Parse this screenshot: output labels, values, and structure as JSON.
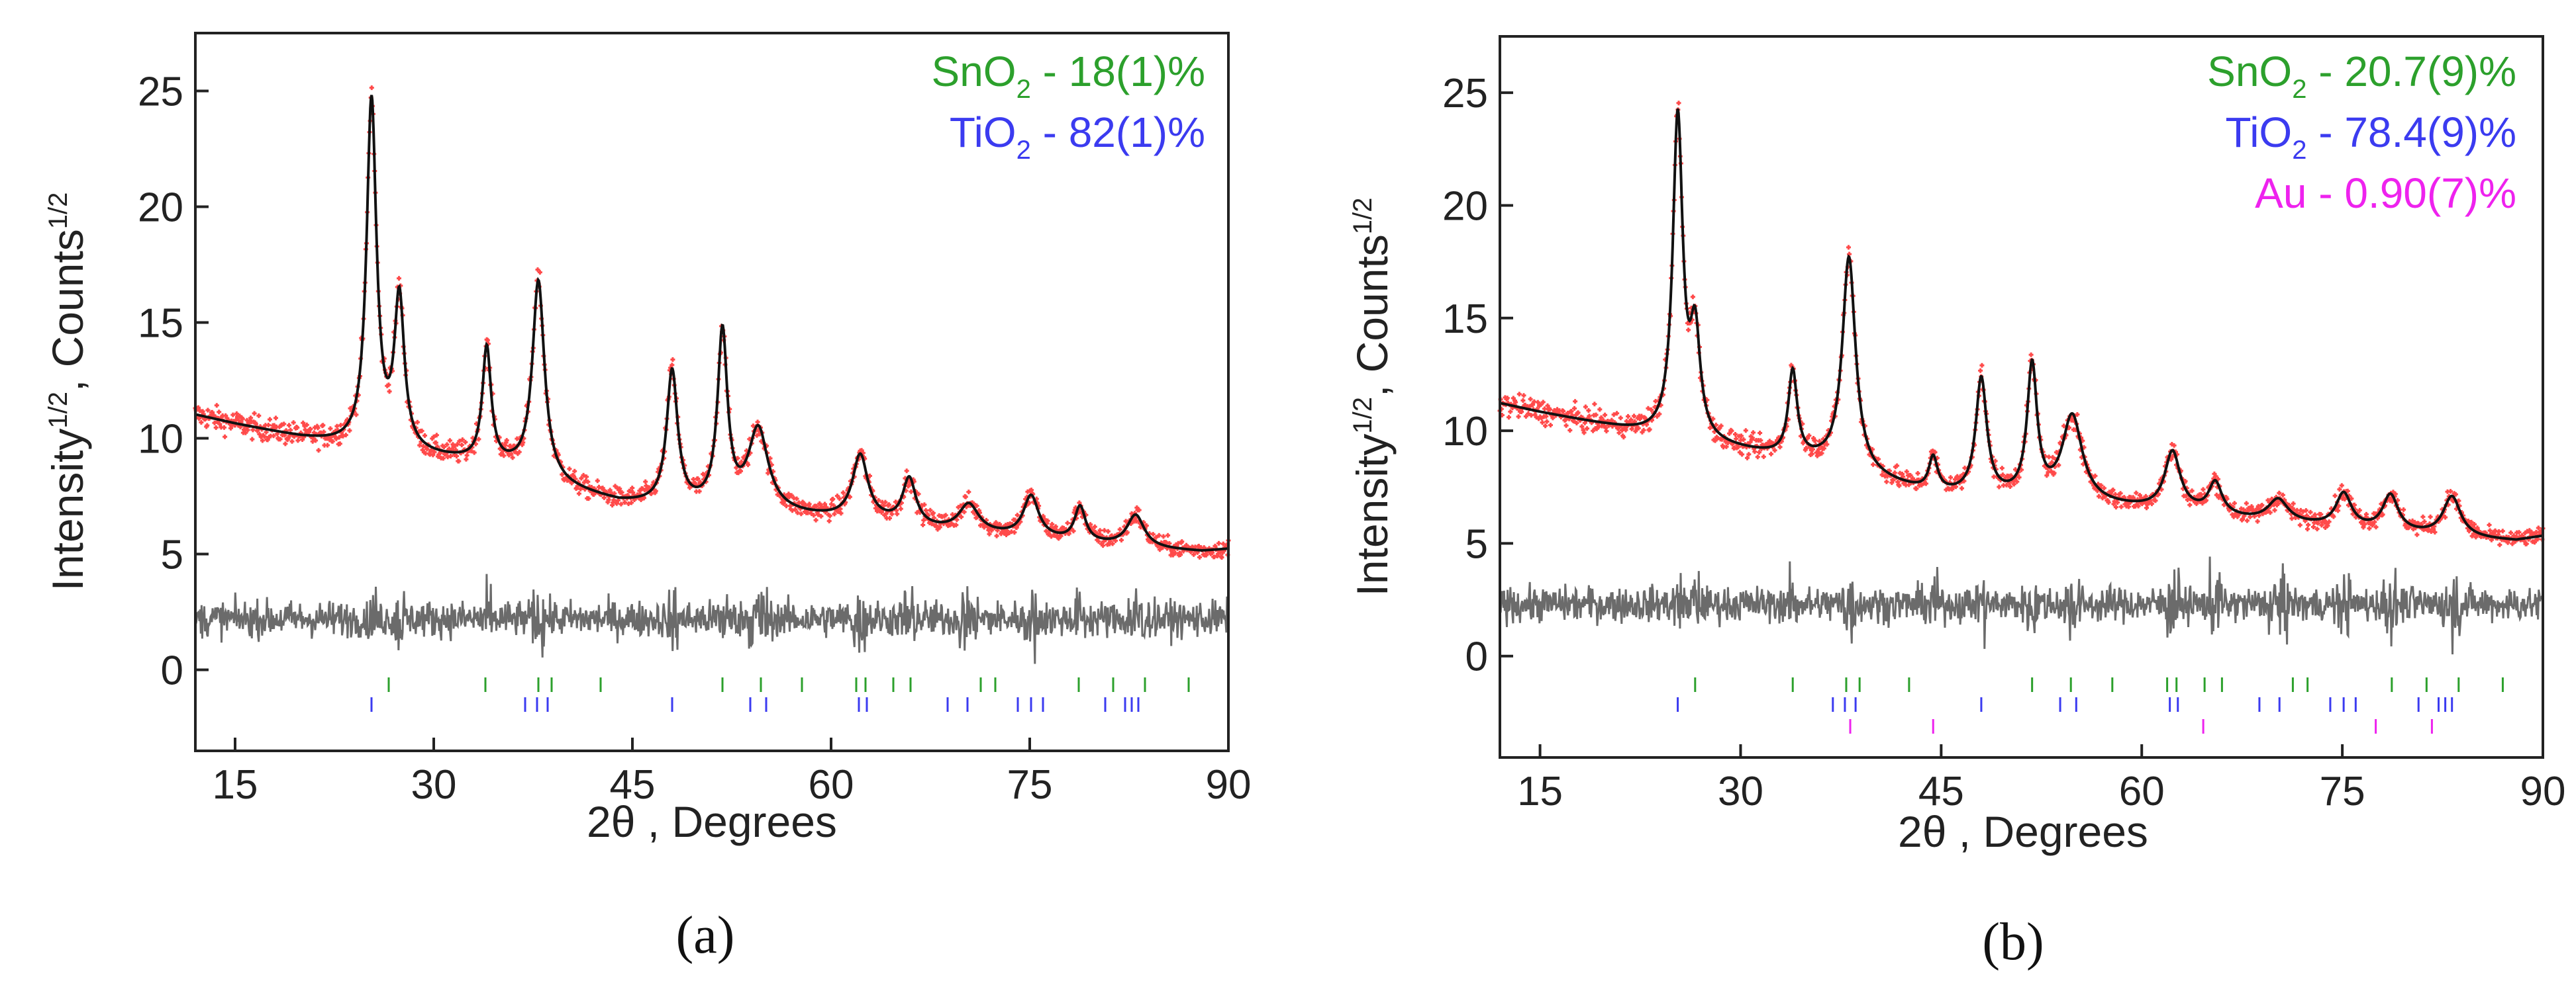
{
  "chart_data": [
    {
      "panel": "a",
      "type": "line",
      "caption": "(a)",
      "xlabel": "2θ , Degrees",
      "ylabel_main": "Intensity",
      "ylabel_mid": ", Counts",
      "ylabel_sup": "1/2",
      "xlim": [
        12,
        90
      ],
      "ylim": [
        -3.5,
        27.5
      ],
      "xticks": [
        15,
        30,
        45,
        60,
        75,
        90
      ],
      "yticks": [
        0,
        5,
        10,
        15,
        20,
        25
      ],
      "legend_position": "top-right",
      "legend": [
        {
          "label": "SnO",
          "sub": "2",
          "dash": " - ",
          "value": "18(1)%",
          "color": "#2ca02c"
        },
        {
          "label": "TiO",
          "sub": "2",
          "dash": " - ",
          "value": "82(1)%",
          "color": "#3b3bf0"
        }
      ],
      "series": [
        {
          "name": "observed",
          "color": "#ff2a2a"
        },
        {
          "name": "calculated",
          "color": "#111111"
        },
        {
          "name": "difference",
          "color": "#6b6b6b"
        }
      ],
      "background_x": [
        12,
        15,
        20,
        24,
        28,
        32,
        36,
        40,
        44,
        48,
        52,
        56,
        60,
        64,
        68,
        72,
        76,
        80,
        84,
        88,
        90
      ],
      "background_y": [
        11.0,
        10.6,
        10.0,
        9.6,
        9.3,
        9.0,
        8.6,
        7.8,
        7.2,
        7.0,
        6.9,
        6.7,
        6.5,
        6.3,
        6.0,
        5.8,
        5.6,
        5.4,
        5.2,
        5.1,
        5.2
      ],
      "peaks": [
        {
          "x": 25.3,
          "h": 15.0,
          "w": 0.45
        },
        {
          "x": 27.4,
          "h": 6.5,
          "w": 0.45
        },
        {
          "x": 34.0,
          "h": 5.0,
          "w": 0.4
        },
        {
          "x": 37.9,
          "h": 8.5,
          "w": 0.55
        },
        {
          "x": 48.0,
          "h": 5.8,
          "w": 0.5
        },
        {
          "x": 51.8,
          "h": 7.5,
          "w": 0.45
        },
        {
          "x": 54.5,
          "h": 3.5,
          "w": 0.9
        },
        {
          "x": 62.2,
          "h": 2.8,
          "w": 0.7
        },
        {
          "x": 65.9,
          "h": 2.0,
          "w": 0.6
        },
        {
          "x": 70.4,
          "h": 1.2,
          "w": 0.9
        },
        {
          "x": 75.1,
          "h": 1.8,
          "w": 0.7
        },
        {
          "x": 78.8,
          "h": 1.5,
          "w": 0.5
        },
        {
          "x": 83.0,
          "h": 1.4,
          "w": 0.8
        }
      ],
      "difference_level": 2.2,
      "ticks_sno2": [
        26.6,
        33.9,
        37.9,
        38.9,
        42.6,
        51.8,
        54.7,
        57.8,
        61.9,
        62.6,
        64.7,
        66.0,
        71.3,
        72.4,
        78.7,
        81.3,
        83.7,
        87.0
      ],
      "ticks_tio2": [
        25.3,
        36.9,
        37.8,
        38.6,
        48.0,
        53.9,
        55.1,
        62.1,
        62.7,
        68.8,
        70.3,
        74.1,
        75.1,
        76.0,
        80.7,
        82.2,
        82.7,
        83.2
      ],
      "ticks_au": []
    },
    {
      "panel": "b",
      "type": "line",
      "caption": "(b)",
      "xlabel": "2θ , Degrees",
      "ylabel_main": "Intensity",
      "ylabel_mid": ", Counts",
      "ylabel_sup": "1/2",
      "xlim": [
        12,
        90
      ],
      "ylim": [
        -4.5,
        27.5
      ],
      "xticks": [
        15,
        30,
        45,
        60,
        75,
        90
      ],
      "yticks": [
        0,
        5,
        10,
        15,
        20,
        25
      ],
      "legend_position": "top-right",
      "legend": [
        {
          "label": "SnO",
          "sub": "2",
          "dash": " - ",
          "value": "20.7(9)%",
          "color": "#2ca02c"
        },
        {
          "label": "TiO",
          "sub": "2",
          "dash": " - ",
          "value": "78.4(9)%",
          "color": "#3b3bf0"
        },
        {
          "label": "Au",
          "sub": "",
          "dash": " - ",
          "value": "0.90(7)%",
          "color": "#ee22ee"
        }
      ],
      "series": [
        {
          "name": "observed",
          "color": "#ff2a2a"
        },
        {
          "name": "calculated",
          "color": "#111111"
        },
        {
          "name": "difference",
          "color": "#6b6b6b"
        }
      ],
      "background_x": [
        12,
        15,
        20,
        24,
        28,
        32,
        36,
        40,
        44,
        48,
        52,
        56,
        60,
        64,
        68,
        72,
        76,
        80,
        84,
        88,
        90
      ],
      "background_y": [
        11.2,
        10.8,
        10.2,
        9.7,
        9.3,
        8.9,
        8.5,
        7.8,
        7.2,
        7.0,
        6.9,
        6.7,
        6.5,
        6.3,
        6.0,
        5.8,
        5.6,
        5.4,
        5.2,
        5.1,
        5.3
      ],
      "peaks": [
        {
          "x": 25.3,
          "h": 14.2,
          "w": 0.45
        },
        {
          "x": 26.6,
          "h": 4.5,
          "w": 0.45
        },
        {
          "x": 33.9,
          "h": 3.8,
          "w": 0.4
        },
        {
          "x": 38.1,
          "h": 9.5,
          "w": 0.6
        },
        {
          "x": 44.4,
          "h": 1.5,
          "w": 0.4
        },
        {
          "x": 48.0,
          "h": 5.2,
          "w": 0.5
        },
        {
          "x": 51.8,
          "h": 5.8,
          "w": 0.45
        },
        {
          "x": 54.8,
          "h": 3.8,
          "w": 0.9
        },
        {
          "x": 62.3,
          "h": 2.6,
          "w": 0.7
        },
        {
          "x": 65.5,
          "h": 1.4,
          "w": 0.6
        },
        {
          "x": 70.2,
          "h": 1.0,
          "w": 0.9
        },
        {
          "x": 75.1,
          "h": 1.5,
          "w": 0.7
        },
        {
          "x": 78.6,
          "h": 1.6,
          "w": 0.7
        },
        {
          "x": 83.2,
          "h": 1.8,
          "w": 0.8
        }
      ],
      "difference_level": 2.3,
      "ticks_sno2": [
        26.6,
        33.9,
        37.9,
        38.9,
        42.6,
        51.8,
        54.7,
        57.8,
        61.9,
        62.6,
        64.7,
        66.0,
        71.3,
        72.4,
        78.7,
        81.3,
        83.7,
        87.0
      ],
      "ticks_tio2": [
        25.3,
        36.9,
        37.8,
        38.6,
        48.0,
        53.9,
        55.1,
        62.1,
        62.7,
        68.8,
        70.3,
        74.1,
        75.1,
        76.0,
        80.7,
        82.2,
        82.7,
        83.2
      ],
      "ticks_au": [
        38.2,
        44.4,
        64.6,
        77.5,
        81.7
      ]
    }
  ]
}
